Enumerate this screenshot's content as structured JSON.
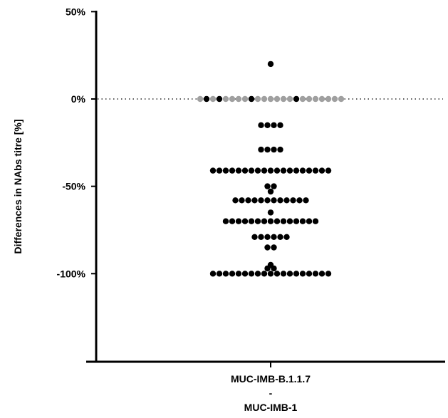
{
  "chart_data": {
    "type": "scatter",
    "subtype": "dot-plot",
    "ylabel": "Differences in NAbs titre [%]",
    "xlabel": "",
    "ylim": [
      -150,
      50
    ],
    "yticks": [
      50,
      0,
      -50,
      -100
    ],
    "ytick_labels": [
      "50%",
      "0%",
      "-50%",
      "-100%"
    ],
    "grid": false,
    "reference_line": {
      "y": 0,
      "style": "dotted"
    },
    "categories": [
      {
        "lines": [
          "MUC-IMB-B.1.1.7",
          "-",
          "MUC-IMB-1"
        ]
      }
    ],
    "colors": {
      "black": "#000000",
      "grey": "#a0a0a0"
    },
    "points": [
      {
        "y": 20,
        "n": 1,
        "colors": [
          "black"
        ]
      },
      {
        "y": 0,
        "n": 23,
        "colors": [
          "grey",
          "black",
          "grey",
          "black",
          "grey",
          "grey",
          "grey",
          "grey",
          "black",
          "grey",
          "grey",
          "grey",
          "grey",
          "grey",
          "grey",
          "black",
          "grey",
          "grey",
          "grey",
          "grey",
          "grey",
          "grey",
          "grey"
        ]
      },
      {
        "y": -15,
        "n": 4
      },
      {
        "y": -29,
        "n": 4
      },
      {
        "y": -41,
        "n": 19
      },
      {
        "y": -50,
        "n": 2
      },
      {
        "y": -53,
        "n": 1
      },
      {
        "y": -58,
        "n": 12
      },
      {
        "y": -65,
        "n": 1
      },
      {
        "y": -70,
        "n": 15
      },
      {
        "y": -79,
        "n": 6
      },
      {
        "y": -85,
        "n": 2
      },
      {
        "y": -95,
        "n": 1
      },
      {
        "y": -97,
        "n": 2
      },
      {
        "y": -100,
        "n": 19
      }
    ]
  }
}
